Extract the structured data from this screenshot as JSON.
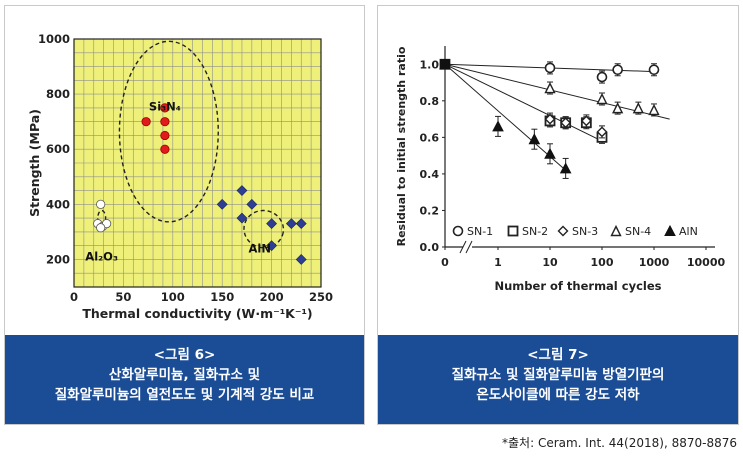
{
  "chart_data": [
    {
      "type": "scatter",
      "xlabel": "Thermal conductivity (W·m⁻¹K⁻¹)",
      "ylabel": "Strength (MPa)",
      "xlim": [
        0,
        250
      ],
      "ylim": [
        100,
        1000
      ],
      "x_ticks": [
        "0",
        "50",
        "100",
        "150",
        "200",
        "250"
      ],
      "y_ticks": [
        "200",
        "400",
        "600",
        "800",
        "1000"
      ],
      "grid": true,
      "background": "#eef07a",
      "series": [
        {
          "name": "Si3N4",
          "label_text": "Si₃N₄",
          "color": "#e01b1b",
          "marker": "circle",
          "points": [
            [
              73,
              700
            ],
            [
              92,
              750
            ],
            [
              92,
              700
            ],
            [
              92,
              650
            ],
            [
              92,
              600
            ]
          ]
        },
        {
          "name": "Al2O3",
          "label_text": "Al₂O₃",
          "color": "#ffffff",
          "marker": "circle",
          "points": [
            [
              27,
              400
            ],
            [
              24,
              330
            ],
            [
              29,
              320
            ],
            [
              33,
              330
            ],
            [
              27,
              315
            ]
          ]
        },
        {
          "name": "AlN",
          "label_text": "AlN",
          "color": "#2e3f93",
          "marker": "diamond",
          "points": [
            [
              150,
              400
            ],
            [
              170,
              450
            ],
            [
              180,
              400
            ],
            [
              170,
              350
            ],
            [
              200,
              330
            ],
            [
              200,
              250
            ],
            [
              220,
              330
            ],
            [
              230,
              330
            ],
            [
              230,
              200
            ]
          ]
        }
      ]
    },
    {
      "type": "line",
      "xscale": "log",
      "xlabel": "Number of thermal cycles",
      "ylabel": "Residual to initial strength ratio",
      "x_ticks": [
        "0",
        "1",
        "10",
        "100",
        "1000",
        "10000"
      ],
      "y_ticks": [
        "0.0",
        "0.2",
        "0.4",
        "0.6",
        "0.8",
        "1.0"
      ],
      "ylim": [
        0,
        1.1
      ],
      "legend": "bottom",
      "series": [
        {
          "name": "SN-1",
          "marker": "circle-open",
          "points": [
            [
              0,
              1.0
            ],
            [
              10,
              0.98
            ],
            [
              100,
              0.93
            ],
            [
              200,
              0.97
            ],
            [
              1000,
              0.97
            ]
          ],
          "trend": [
            [
              0,
              1.0
            ],
            [
              1000,
              0.96
            ]
          ]
        },
        {
          "name": "SN-2",
          "marker": "square-open",
          "points": [
            [
              0,
              1.0
            ],
            [
              10,
              0.69
            ],
            [
              20,
              0.68
            ],
            [
              50,
              0.68
            ],
            [
              100,
              0.6
            ]
          ],
          "trend": [
            [
              0,
              1.0
            ],
            [
              100,
              0.58
            ]
          ]
        },
        {
          "name": "SN-3",
          "marker": "diamond-open",
          "points": [
            [
              0,
              1.0
            ],
            [
              10,
              0.7
            ],
            [
              20,
              0.68
            ],
            [
              50,
              0.69
            ],
            [
              100,
              0.63
            ]
          ],
          "trend": null
        },
        {
          "name": "SN-4",
          "marker": "triangle-open",
          "points": [
            [
              0,
              1.0
            ],
            [
              10,
              0.87
            ],
            [
              100,
              0.81
            ],
            [
              200,
              0.76
            ],
            [
              500,
              0.76
            ],
            [
              1000,
              0.75
            ]
          ],
          "trend": [
            [
              0,
              1.0
            ],
            [
              2000,
              0.7
            ]
          ]
        },
        {
          "name": "AlN",
          "marker": "triangle-filled",
          "points": [
            [
              0,
              1.0
            ],
            [
              1,
              0.66
            ],
            [
              5,
              0.59
            ],
            [
              10,
              0.51
            ],
            [
              20,
              0.43
            ]
          ],
          "trend": [
            [
              0,
              1.0
            ],
            [
              20,
              0.42
            ]
          ]
        }
      ]
    }
  ],
  "captions": {
    "fig6": {
      "title": "<그림 6>",
      "line1": "산화알루미늄, 질화규소 및",
      "line2": "질화알루미늄의 열전도도 및 기계적 강도 비교"
    },
    "fig7": {
      "title": "<그림 7>",
      "line1": "질화규소 및 질화알루미늄 방열기판의",
      "line2": "온도사이클에 따른 강도 저하"
    }
  },
  "source": "*출처: Ceram. Int. 44(2018), 8870-8876"
}
